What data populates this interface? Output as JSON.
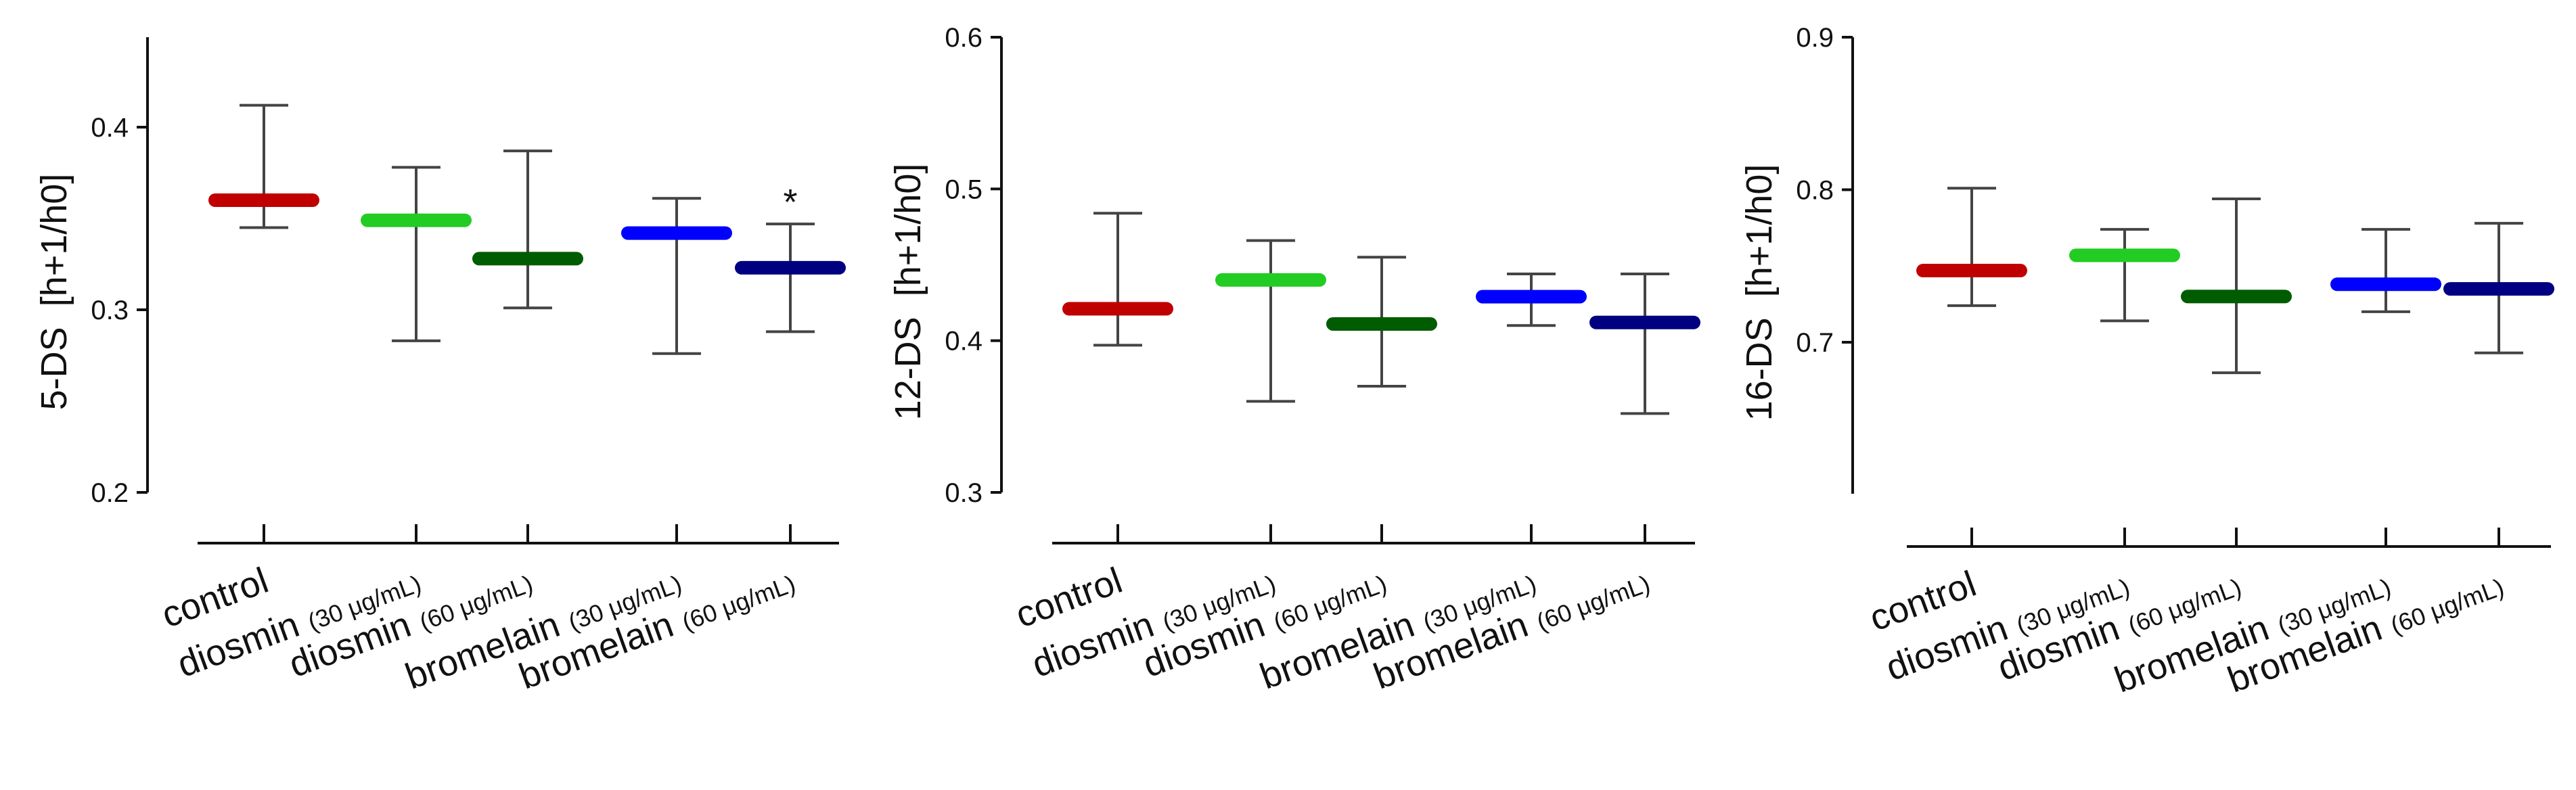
{
  "chart_data": [
    {
      "type": "median-range",
      "ylabel": "5-DS",
      "ylabel_unit": "[h+1/h0]",
      "ylim": [
        0.2,
        0.45
      ],
      "yticks": [
        "0.2",
        "0.3",
        "0.4"
      ],
      "categories": [
        {
          "name": "control",
          "note": ""
        },
        {
          "name": "diosmin",
          "note": "(30 μg/mL)"
        },
        {
          "name": "diosmin",
          "note": "(60 μg/mL)"
        },
        {
          "name": "bromelain",
          "note": "(30 μg/mL)"
        },
        {
          "name": "bromelain",
          "note": "(60 μg/mL)"
        }
      ],
      "series": [
        {
          "median": 0.36,
          "min": 0.345,
          "max": 0.412,
          "color": "#c00000",
          "annotation": ""
        },
        {
          "median": 0.349,
          "min": 0.283,
          "max": 0.378,
          "color": "#22cc22",
          "annotation": ""
        },
        {
          "median": 0.328,
          "min": 0.301,
          "max": 0.387,
          "color": "#005c00",
          "annotation": ""
        },
        {
          "median": 0.342,
          "min": 0.276,
          "max": 0.361,
          "color": "#0000ff",
          "annotation": ""
        },
        {
          "median": 0.323,
          "min": 0.288,
          "max": 0.347,
          "color": "#000080",
          "annotation": "*"
        }
      ]
    },
    {
      "type": "median-range",
      "ylabel": "12-DS",
      "ylabel_unit": "[h+1/h0]",
      "ylim": [
        0.3,
        0.6
      ],
      "yticks": [
        "0.3",
        "0.4",
        "0.5",
        "0.6"
      ],
      "categories": [
        {
          "name": "control",
          "note": ""
        },
        {
          "name": "diosmin",
          "note": "(30 μg/mL)"
        },
        {
          "name": "diosmin",
          "note": "(60 μg/mL)"
        },
        {
          "name": "bromelain",
          "note": "(30 μg/mL)"
        },
        {
          "name": "bromelain",
          "note": "(60 μg/mL)"
        }
      ],
      "series": [
        {
          "median": 0.421,
          "min": 0.397,
          "max": 0.484,
          "color": "#c00000",
          "annotation": ""
        },
        {
          "median": 0.44,
          "min": 0.36,
          "max": 0.466,
          "color": "#22cc22",
          "annotation": ""
        },
        {
          "median": 0.411,
          "min": 0.37,
          "max": 0.455,
          "color": "#005c00",
          "annotation": ""
        },
        {
          "median": 0.429,
          "min": 0.41,
          "max": 0.444,
          "color": "#0000ff",
          "annotation": ""
        },
        {
          "median": 0.412,
          "min": 0.352,
          "max": 0.444,
          "color": "#000080",
          "annotation": ""
        }
      ]
    },
    {
      "type": "median-range",
      "ylabel": "16-DS",
      "ylabel_unit": "[h+1/h0]",
      "ylim": [
        0.6,
        0.9
      ],
      "yticks": [
        "0.7",
        "0.8",
        "0.9"
      ],
      "categories": [
        {
          "name": "control",
          "note": ""
        },
        {
          "name": "diosmin",
          "note": "(30 μg/mL)"
        },
        {
          "name": "diosmin",
          "note": "(60 μg/mL)"
        },
        {
          "name": "bromelain",
          "note": "(30 μg/mL)"
        },
        {
          "name": "bromelain",
          "note": "(60 μg/mL)"
        }
      ],
      "series": [
        {
          "median": 0.747,
          "min": 0.724,
          "max": 0.801,
          "color": "#c00000",
          "annotation": ""
        },
        {
          "median": 0.757,
          "min": 0.714,
          "max": 0.774,
          "color": "#22cc22",
          "annotation": ""
        },
        {
          "median": 0.73,
          "min": 0.68,
          "max": 0.794,
          "color": "#005c00",
          "annotation": ""
        },
        {
          "median": 0.738,
          "min": 0.72,
          "max": 0.774,
          "color": "#0000ff",
          "annotation": ""
        },
        {
          "median": 0.735,
          "min": 0.693,
          "max": 0.778,
          "color": "#000080",
          "annotation": ""
        }
      ]
    }
  ]
}
